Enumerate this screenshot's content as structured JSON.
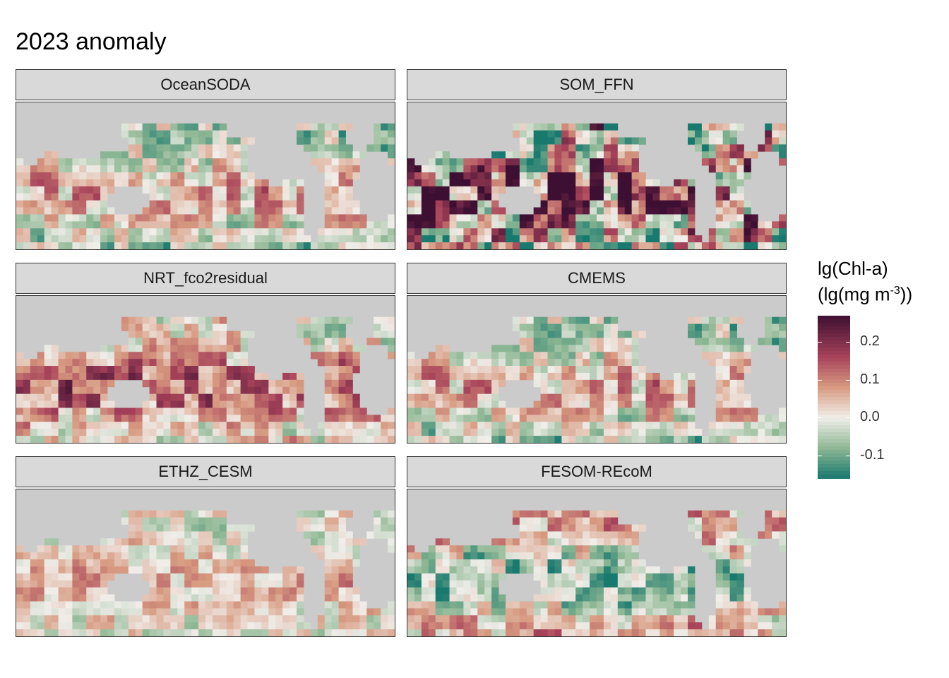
{
  "title": "2023 anomaly",
  "panels": [
    {
      "label": "OceanSODA",
      "pattern": "moderate"
    },
    {
      "label": "SOM_FFN",
      "pattern": "strong"
    },
    {
      "label": "NRT_fco2residual",
      "pattern": "positive"
    },
    {
      "label": "CMEMS",
      "pattern": "moderate"
    },
    {
      "label": "ETHZ_CESM",
      "pattern": "weak"
    },
    {
      "label": "FESOM-REcoM",
      "pattern": "negative"
    }
  ],
  "legend": {
    "title_line1": "lg(Chl-a)",
    "title_line2_pre": "(lg(mg m",
    "title_line2_sup": "-3",
    "title_line2_post": "))",
    "ticks": [
      "0.2",
      "0.1",
      "0.0",
      "-0.1"
    ],
    "tick_values": [
      0.2,
      0.1,
      0.0,
      -0.1
    ],
    "range": [
      -0.16,
      0.27
    ]
  },
  "colors": {
    "land": "#cbcbcb",
    "strong_positive": "#3d0f32",
    "positive": "#a8435a",
    "mid_positive": "#d79a80",
    "neutral": "#f1eeea",
    "negative": "#8fb894",
    "strong_negative": "#18796f"
  }
}
